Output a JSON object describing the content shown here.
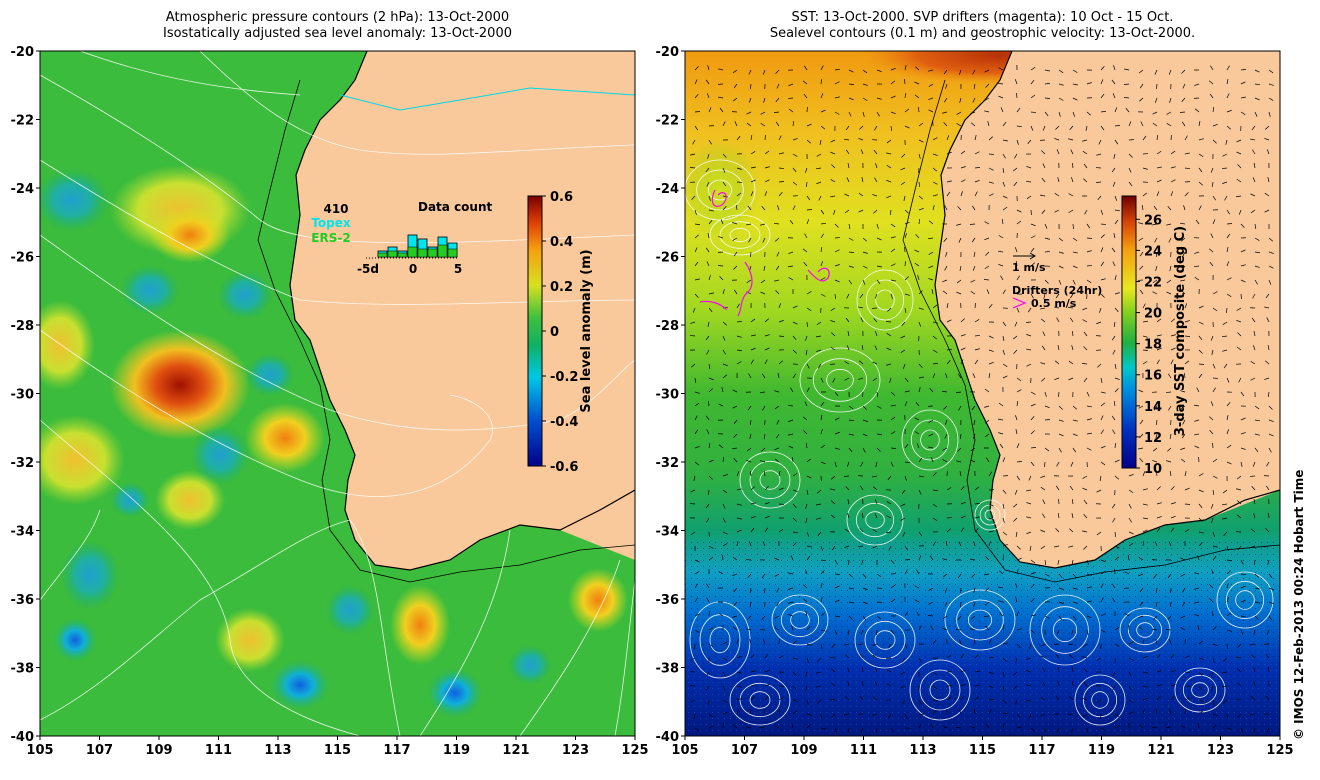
{
  "left_panel": {
    "title_line1": "Atmospheric pressure contours (2 hPa): 13-Oct-2000",
    "title_line2": "Isostatically adjusted sea level anomaly: 13-Oct-2000",
    "colorbar": {
      "label": "Sea level anomaly (m)",
      "ticks": [
        "0.6",
        "0.4",
        "0.2",
        "0",
        "-0.2",
        "-0.4",
        "-0.6"
      ],
      "range": [
        -0.6,
        0.6
      ]
    },
    "data_count": {
      "title": "Data count",
      "count": "410",
      "topex_label": "Topex",
      "ers2_label": "ERS-2",
      "x_ticks": [
        "-5d",
        "0",
        "5"
      ],
      "topex_color": "#00e5ee",
      "ers2_color": "#22cc22"
    }
  },
  "right_panel": {
    "title_line1": "SST: 13-Oct-2000. SVP drifters (magenta): 10 Oct - 15 Oct.",
    "title_line2": "Sealevel contours (0.1 m) and geostrophic velocity: 13-Oct-2000.",
    "colorbar": {
      "label": "3-day SST composite (deg C)",
      "ticks": [
        "26",
        "24",
        "22",
        "20",
        "18",
        "16",
        "14",
        "12",
        "10"
      ],
      "range": [
        10,
        27.5
      ]
    },
    "velocity_legend": "1 m/s",
    "drifter_legend_title": "Drifters (24hr)",
    "drifter_legend_speed": "0.5 m/s",
    "drifter_color": "#ff00ff"
  },
  "map_axes": {
    "lon_ticks": [
      "105",
      "107",
      "109",
      "111",
      "113",
      "115",
      "117",
      "119",
      "121",
      "123",
      "125"
    ],
    "lat_ticks": [
      "-20",
      "-22",
      "-24",
      "-26",
      "-28",
      "-30",
      "-32",
      "-34",
      "-36",
      "-38",
      "-40"
    ],
    "lon_range": [
      105,
      125
    ],
    "lat_range": [
      -40,
      -20
    ]
  },
  "colors": {
    "land": "#f9c89b",
    "contour": "#ffffff",
    "coast": "#000000",
    "cyan_line": "#00d8e8"
  },
  "credit": "© IMOS 12-Feb-2013 00:24 Hobart Time"
}
